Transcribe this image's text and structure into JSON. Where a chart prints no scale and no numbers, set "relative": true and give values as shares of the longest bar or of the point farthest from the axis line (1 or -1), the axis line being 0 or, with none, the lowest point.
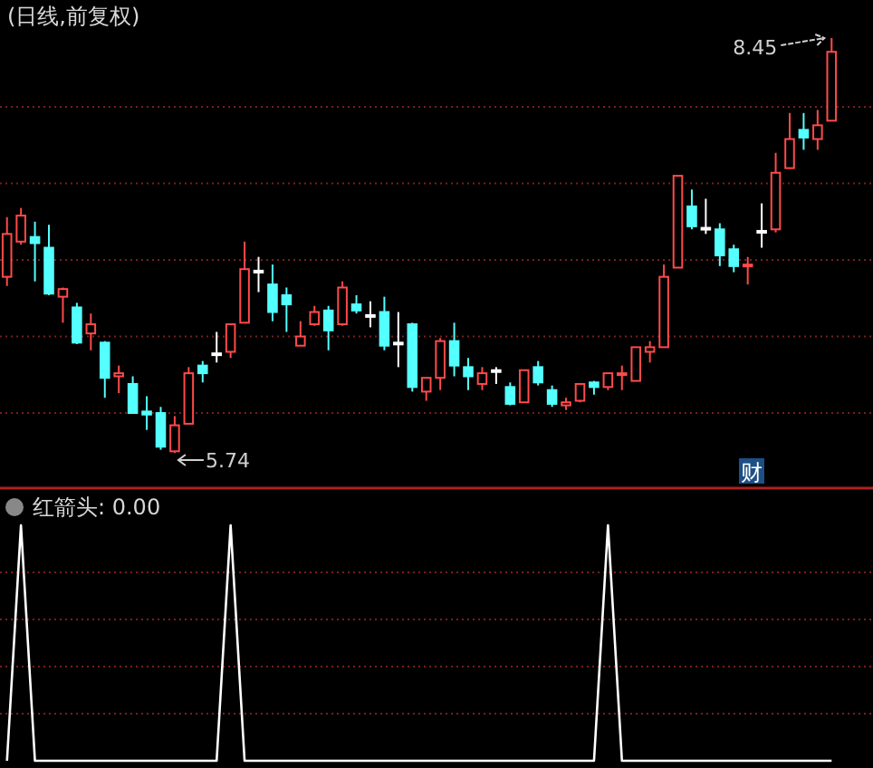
{
  "chart_data": [
    {
      "type": "candlestick",
      "title": "(日线,前复权)",
      "ref_lines": [
        {
          "axis": "y",
          "value": 8.0,
          "color": "#7a1e1e",
          "line_style": "dotted"
        },
        {
          "axis": "y",
          "value": 7.5,
          "color": "#7a1e1e",
          "line_style": "dotted"
        },
        {
          "axis": "y",
          "value": 7.0,
          "color": "#7a1e1e",
          "line_style": "dotted"
        },
        {
          "axis": "y",
          "value": 6.5,
          "color": "#7a1e1e",
          "line_style": "dotted"
        },
        {
          "axis": "y",
          "value": 6.0,
          "color": "#7a1e1e",
          "line_style": "dotted"
        }
      ],
      "colors": [
        "#ff4a4a",
        "#ff4a4a",
        "#54ffff",
        "#54ffff",
        "#ff4a4a",
        "#54ffff",
        "#ff4a4a",
        "#54ffff",
        "#ff4a4a",
        "#54ffff",
        "#54ffff",
        "#54ffff",
        "#ff4a4a",
        "#ff4a4a",
        "#54ffff",
        "#ffffff",
        "#ff4a4a",
        "#ff4a4a",
        "#ffffff",
        "#54ffff",
        "#54ffff",
        "#ff4a4a",
        "#ff4a4a",
        "#54ffff",
        "#ff4a4a",
        "#54ffff",
        "#ffffff",
        "#54ffff",
        "#ffffff",
        "#54ffff",
        "#ff4a4a",
        "#ff4a4a",
        "#54ffff",
        "#54ffff",
        "#ff4a4a",
        "#ffffff",
        "#54ffff",
        "#ff4a4a",
        "#54ffff",
        "#54ffff",
        "#ff4a4a",
        "#ff4a4a",
        "#54ffff",
        "#ff4a4a",
        "#ff4a4a",
        "#ff4a4a",
        "#ff4a4a",
        "#ff4a4a",
        "#ff4a4a",
        "#54ffff",
        "#ffffff",
        "#54ffff",
        "#54ffff",
        "#ff4a4a",
        "#ffffff",
        "#ff4a4a",
        "#ff4a4a",
        "#54ffff",
        "#ff4a4a",
        "#ff4a4a"
      ],
      "categories": [
        null,
        null,
        null,
        null,
        null,
        null,
        null,
        null,
        null,
        null,
        null,
        null,
        null,
        null,
        null,
        null,
        null,
        null,
        null,
        null,
        null,
        null,
        null,
        null,
        null,
        null,
        null,
        null,
        null,
        null,
        null,
        null,
        null,
        null,
        null,
        null,
        null,
        null,
        null,
        null,
        null,
        null,
        null,
        null,
        null,
        null,
        null,
        null,
        null,
        null,
        null,
        null,
        null,
        null,
        null,
        null,
        null,
        null,
        null,
        null
      ],
      "ohlc": [
        [
          6.89,
          7.28,
          6.83,
          7.17
        ],
        [
          7.12,
          7.34,
          7.1,
          7.29
        ],
        [
          7.15,
          7.25,
          6.86,
          7.11
        ],
        [
          7.08,
          7.23,
          6.77,
          6.78
        ],
        [
          6.76,
          6.82,
          6.59,
          6.81
        ],
        [
          6.69,
          6.72,
          6.45,
          6.46
        ],
        [
          6.52,
          6.65,
          6.41,
          6.58
        ],
        [
          6.46,
          6.47,
          6.1,
          6.23
        ],
        [
          6.24,
          6.31,
          6.13,
          6.26
        ],
        [
          6.19,
          6.24,
          6.0,
          6.0
        ],
        [
          6.01,
          6.11,
          5.89,
          5.99
        ],
        [
          6.0,
          6.04,
          5.76,
          5.78
        ],
        [
          5.75,
          5.98,
          5.74,
          5.92
        ],
        [
          5.93,
          6.3,
          5.93,
          6.26
        ],
        [
          6.31,
          6.34,
          6.2,
          6.26
        ],
        [
          6.39,
          6.53,
          6.33,
          6.39
        ],
        [
          6.4,
          6.58,
          6.36,
          6.58
        ],
        [
          6.59,
          7.12,
          6.59,
          6.94
        ],
        [
          6.93,
          7.02,
          6.79,
          6.93
        ],
        [
          6.84,
          6.97,
          6.6,
          6.66
        ],
        [
          6.77,
          6.82,
          6.53,
          6.71
        ],
        [
          6.44,
          6.6,
          6.44,
          6.5
        ],
        [
          6.58,
          6.7,
          6.57,
          6.66
        ],
        [
          6.67,
          6.7,
          6.41,
          6.54
        ],
        [
          6.58,
          6.86,
          6.57,
          6.82
        ],
        [
          6.71,
          6.77,
          6.65,
          6.67
        ],
        [
          6.64,
          6.73,
          6.56,
          6.64
        ],
        [
          6.66,
          6.76,
          6.41,
          6.44
        ],
        [
          6.46,
          6.66,
          6.3,
          6.46
        ],
        [
          6.58,
          6.59,
          6.14,
          6.17
        ],
        [
          6.14,
          6.23,
          6.08,
          6.23
        ],
        [
          6.23,
          6.49,
          6.15,
          6.47
        ],
        [
          6.47,
          6.59,
          6.24,
          6.31
        ],
        [
          6.3,
          6.36,
          6.15,
          6.24
        ],
        [
          6.19,
          6.3,
          6.15,
          6.26
        ],
        [
          6.28,
          6.3,
          6.19,
          6.28
        ],
        [
          6.17,
          6.2,
          6.05,
          6.06
        ],
        [
          6.07,
          6.28,
          6.07,
          6.28
        ],
        [
          6.3,
          6.34,
          6.18,
          6.2
        ],
        [
          6.15,
          6.18,
          6.04,
          6.06
        ],
        [
          6.05,
          6.1,
          6.02,
          6.07
        ],
        [
          6.08,
          6.19,
          6.07,
          6.19
        ],
        [
          6.2,
          6.21,
          6.12,
          6.17
        ],
        [
          6.17,
          6.26,
          6.15,
          6.26
        ],
        [
          6.25,
          6.31,
          6.15,
          6.26
        ],
        [
          6.21,
          6.43,
          6.21,
          6.43
        ],
        [
          6.4,
          6.47,
          6.33,
          6.43
        ],
        [
          6.43,
          6.97,
          6.43,
          6.89
        ],
        [
          6.95,
          7.55,
          6.95,
          7.55
        ],
        [
          7.35,
          7.46,
          7.2,
          7.22
        ],
        [
          7.21,
          7.4,
          7.17,
          7.21
        ],
        [
          7.2,
          7.24,
          6.96,
          7.03
        ],
        [
          7.07,
          7.1,
          6.92,
          6.96
        ],
        [
          6.96,
          7.02,
          6.84,
          6.97
        ],
        [
          7.19,
          7.37,
          7.08,
          7.19
        ],
        [
          7.2,
          7.7,
          7.18,
          7.57
        ],
        [
          7.6,
          7.96,
          7.6,
          7.79
        ],
        [
          7.85,
          7.96,
          7.72,
          7.8
        ],
        [
          7.79,
          7.98,
          7.72,
          7.88
        ],
        [
          7.91,
          8.45,
          7.91,
          8.36
        ]
      ],
      "annotations": [
        "8.45",
        "5.74",
        "财"
      ]
    },
    {
      "type": "line",
      "title": "红箭头: 0.00",
      "relative": true,
      "ref_lines": [
        {
          "axis": "y",
          "value": 0.8,
          "color": "#7a1e1e",
          "line_style": "dotted"
        },
        {
          "axis": "y",
          "value": 0.6,
          "color": "#7a1e1e",
          "line_style": "dotted"
        },
        {
          "axis": "y",
          "value": 0.4,
          "color": "#7a1e1e",
          "line_style": "dotted"
        },
        {
          "axis": "y",
          "value": 0.2,
          "color": "#7a1e1e",
          "line_style": "dotted"
        }
      ],
      "series": [
        {
          "color": "#ffffff",
          "values": [
            0,
            1,
            0,
            0,
            0,
            0,
            0,
            0,
            0,
            0,
            0,
            0,
            0,
            0,
            0,
            0,
            1,
            0,
            0,
            0,
            0,
            0,
            0,
            0,
            0,
            0,
            0,
            0,
            0,
            0,
            0,
            0,
            0,
            0,
            0,
            0,
            0,
            0,
            0,
            0,
            0,
            0,
            0,
            1,
            0,
            0,
            0,
            0,
            0,
            0,
            0,
            0,
            0,
            0,
            0,
            0,
            0,
            0,
            0,
            0
          ]
        }
      ],
      "categories": [
        null,
        null,
        null,
        null,
        null,
        null,
        null,
        null,
        null,
        null,
        null,
        null,
        null,
        null,
        null,
        null,
        null,
        null,
        null,
        null,
        null,
        null,
        null,
        null,
        null,
        null,
        null,
        null,
        null,
        null,
        null,
        null,
        null,
        null,
        null,
        null,
        null,
        null,
        null,
        null,
        null,
        null,
        null,
        null,
        null,
        null,
        null,
        null,
        null,
        null,
        null,
        null,
        null,
        null,
        null,
        null,
        null,
        null,
        null,
        null
      ]
    }
  ]
}
